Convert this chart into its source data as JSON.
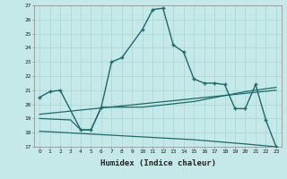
{
  "xlabel": "Humidex (Indice chaleur)",
  "bg_color": "#c5e8e8",
  "line_color": "#1a6b6b",
  "grid_color": "#b0d8d8",
  "xlim": [
    -0.5,
    23.5
  ],
  "ylim": [
    17,
    27
  ],
  "xticks": [
    0,
    1,
    2,
    3,
    4,
    5,
    6,
    7,
    8,
    9,
    10,
    11,
    12,
    13,
    14,
    15,
    16,
    17,
    18,
    19,
    20,
    21,
    22,
    23
  ],
  "yticks": [
    17,
    18,
    19,
    20,
    21,
    22,
    23,
    24,
    25,
    26,
    27
  ],
  "line1_x": [
    0,
    1,
    2,
    4,
    5,
    6,
    7,
    8,
    10,
    11,
    12,
    13,
    14,
    15,
    16,
    17,
    18,
    19,
    20,
    21,
    22,
    23
  ],
  "line1_y": [
    20.5,
    20.9,
    21.0,
    18.2,
    18.2,
    19.8,
    23.0,
    23.3,
    25.3,
    26.7,
    26.8,
    24.2,
    23.7,
    21.8,
    21.5,
    21.5,
    21.4,
    19.7,
    19.7,
    21.4,
    18.9,
    17.0
  ],
  "line2_x": [
    0,
    3,
    4,
    5,
    6,
    10,
    15,
    20,
    23
  ],
  "line2_y": [
    19.0,
    18.9,
    18.2,
    18.2,
    19.8,
    19.8,
    20.2,
    20.9,
    21.2
  ],
  "line3_x": [
    0,
    23
  ],
  "line3_y": [
    19.3,
    21.0
  ],
  "line4_x": [
    0,
    5,
    10,
    15,
    20,
    23
  ],
  "line4_y": [
    18.1,
    17.9,
    17.7,
    17.5,
    17.2,
    17.0
  ]
}
